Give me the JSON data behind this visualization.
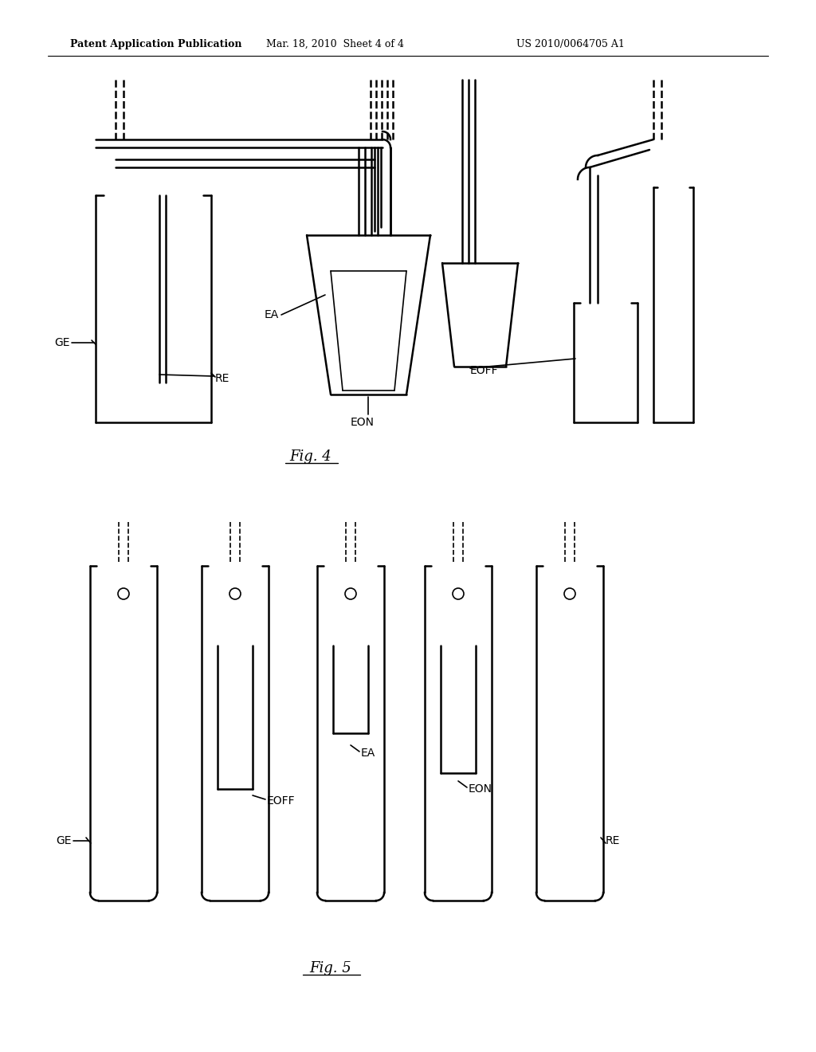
{
  "bg_color": "#ffffff",
  "line_color": "#000000",
  "header_left": "Patent Application Publication",
  "header_mid": "Mar. 18, 2010  Sheet 4 of 4",
  "header_right": "US 2010/0064705 A1",
  "fig4_label": "Fig. 4",
  "fig5_label": "Fig. 5",
  "lw_main": 1.8,
  "lw_thin": 1.2
}
